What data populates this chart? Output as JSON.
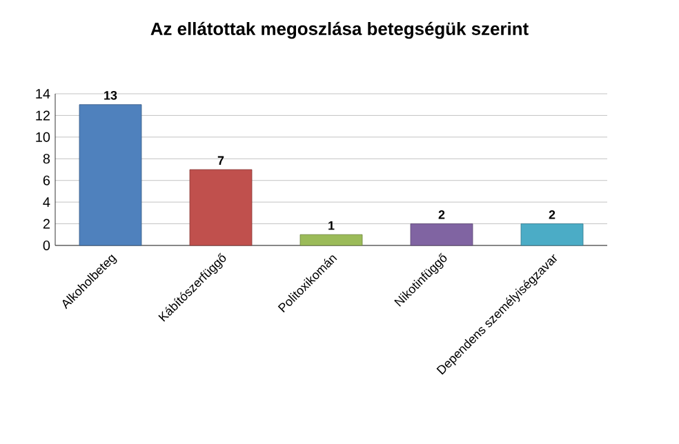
{
  "chart_data": {
    "type": "bar",
    "title": "Az ellátottak megoszlása betegségük szerint",
    "categories": [
      "Alkoholbeteg",
      "Kábítószerfüggő",
      "Politoxikomán",
      "Nikotinfüggő",
      "Dependens személyiségzavar"
    ],
    "values": [
      13,
      7,
      1,
      2,
      2
    ],
    "colors": [
      "#4f81bd",
      "#c0504d",
      "#9bbb59",
      "#8064a2",
      "#4bacc6"
    ],
    "ylim": [
      0,
      14
    ],
    "yticks": [
      0,
      2,
      4,
      6,
      8,
      10,
      12,
      14
    ],
    "grid": "y",
    "data_labels": true
  }
}
